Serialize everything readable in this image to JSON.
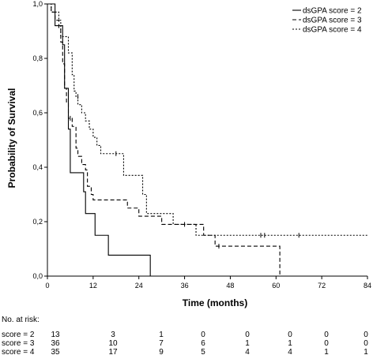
{
  "chart_data": {
    "type": "line",
    "subtype": "kaplan-meier step",
    "xlabel": "Time (months)",
    "ylabel": "Probability of Survival",
    "xlim": [
      0,
      84
    ],
    "ylim": [
      0,
      1
    ],
    "x_ticks": [
      0,
      12,
      24,
      36,
      48,
      60,
      72,
      84
    ],
    "y_ticks": [
      "0,0",
      "0,2",
      "0,4",
      "0,6",
      "0,8",
      "1,0"
    ],
    "grid": false,
    "legend_position": "top-right",
    "series": [
      {
        "name": "dsGPA score = 2",
        "style": "solid",
        "points": [
          [
            0,
            1.0
          ],
          [
            2,
            0.92
          ],
          [
            4,
            0.85
          ],
          [
            4.5,
            0.69
          ],
          [
            5.5,
            0.54
          ],
          [
            6,
            0.38
          ],
          [
            9.5,
            0.31
          ],
          [
            10,
            0.23
          ],
          [
            12.5,
            0.15
          ],
          [
            16,
            0.077
          ],
          [
            27,
            0.0
          ]
        ],
        "censored": []
      },
      {
        "name": "dsGPA score = 3",
        "style": "dashed",
        "points": [
          [
            0,
            1.0
          ],
          [
            1,
            0.97
          ],
          [
            2,
            0.94
          ],
          [
            3,
            0.91
          ],
          [
            3.5,
            0.86
          ],
          [
            4,
            0.78
          ],
          [
            4.5,
            0.69
          ],
          [
            5,
            0.64
          ],
          [
            5.5,
            0.58
          ],
          [
            6.5,
            0.55
          ],
          [
            7.5,
            0.47
          ],
          [
            8,
            0.44
          ],
          [
            9,
            0.41
          ],
          [
            10,
            0.39
          ],
          [
            10.5,
            0.33
          ],
          [
            11.5,
            0.3
          ],
          [
            12,
            0.28
          ],
          [
            21,
            0.25
          ],
          [
            24,
            0.22
          ],
          [
            30,
            0.19
          ],
          [
            38.5,
            0.19
          ],
          [
            41,
            0.15
          ],
          [
            44,
            0.11
          ],
          [
            60,
            0.11
          ],
          [
            61,
            0.0
          ]
        ],
        "censored": [
          [
            6,
            0.58
          ],
          [
            45,
            0.11
          ]
        ]
      },
      {
        "name": "dsGPA score = 4",
        "style": "dotted",
        "points": [
          [
            0,
            1.0
          ],
          [
            1,
            0.97
          ],
          [
            2.5,
            0.97
          ],
          [
            3,
            0.94
          ],
          [
            3.5,
            0.88
          ],
          [
            5,
            0.88
          ],
          [
            5.5,
            0.82
          ],
          [
            6.5,
            0.74
          ],
          [
            7,
            0.68
          ],
          [
            7.5,
            0.66
          ],
          [
            8,
            0.63
          ],
          [
            9,
            0.6
          ],
          [
            10,
            0.57
          ],
          [
            11,
            0.54
          ],
          [
            12,
            0.51
          ],
          [
            13,
            0.48
          ],
          [
            14,
            0.45
          ],
          [
            19,
            0.45
          ],
          [
            20,
            0.37
          ],
          [
            24,
            0.37
          ],
          [
            25,
            0.3
          ],
          [
            26,
            0.23
          ],
          [
            32,
            0.23
          ],
          [
            33,
            0.19
          ],
          [
            36,
            0.19
          ],
          [
            39,
            0.15
          ],
          [
            84,
            0.15
          ]
        ],
        "censored": [
          [
            8,
            0.66
          ],
          [
            18,
            0.45
          ],
          [
            36,
            0.19
          ],
          [
            56,
            0.15
          ],
          [
            57,
            0.15
          ],
          [
            66,
            0.15
          ]
        ]
      }
    ],
    "risk_table": {
      "title": "No. at risk:",
      "rows": [
        {
          "label": "score = 2",
          "values": [
            "13",
            "3",
            "1",
            "0",
            "0",
            "0",
            "0",
            "0"
          ]
        },
        {
          "label": "score = 3",
          "values": [
            "36",
            "10",
            "7",
            "6",
            "1",
            "1",
            "0",
            "0"
          ]
        },
        {
          "label": "score = 4",
          "values": [
            "35",
            "17",
            "9",
            "5",
            "4",
            "4",
            "1",
            "1"
          ]
        }
      ]
    }
  }
}
